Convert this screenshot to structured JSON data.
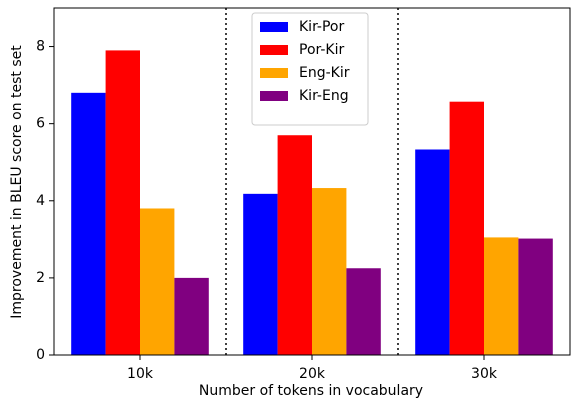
{
  "chart_data": {
    "type": "bar",
    "categories": [
      "10k",
      "20k",
      "30k"
    ],
    "series": [
      {
        "name": "Kir-Por",
        "color": "#0000ff",
        "values": [
          6.8,
          4.18,
          5.33
        ]
      },
      {
        "name": "Por-Kir",
        "color": "#ff0000",
        "values": [
          7.9,
          5.7,
          6.57
        ]
      },
      {
        "name": "Eng-Kir",
        "color": "#ffa500",
        "values": [
          3.8,
          4.33,
          3.05
        ]
      },
      {
        "name": "Kir-Eng",
        "color": "#800080",
        "values": [
          2.0,
          2.25,
          3.02
        ]
      }
    ],
    "xlabel": "Number of tokens in vocabulary",
    "ylabel": "Improvement in BLEU score on test set",
    "ylim": [
      0,
      9
    ],
    "yticks": [
      0,
      2,
      4,
      6,
      8
    ],
    "legend": "upper center"
  }
}
